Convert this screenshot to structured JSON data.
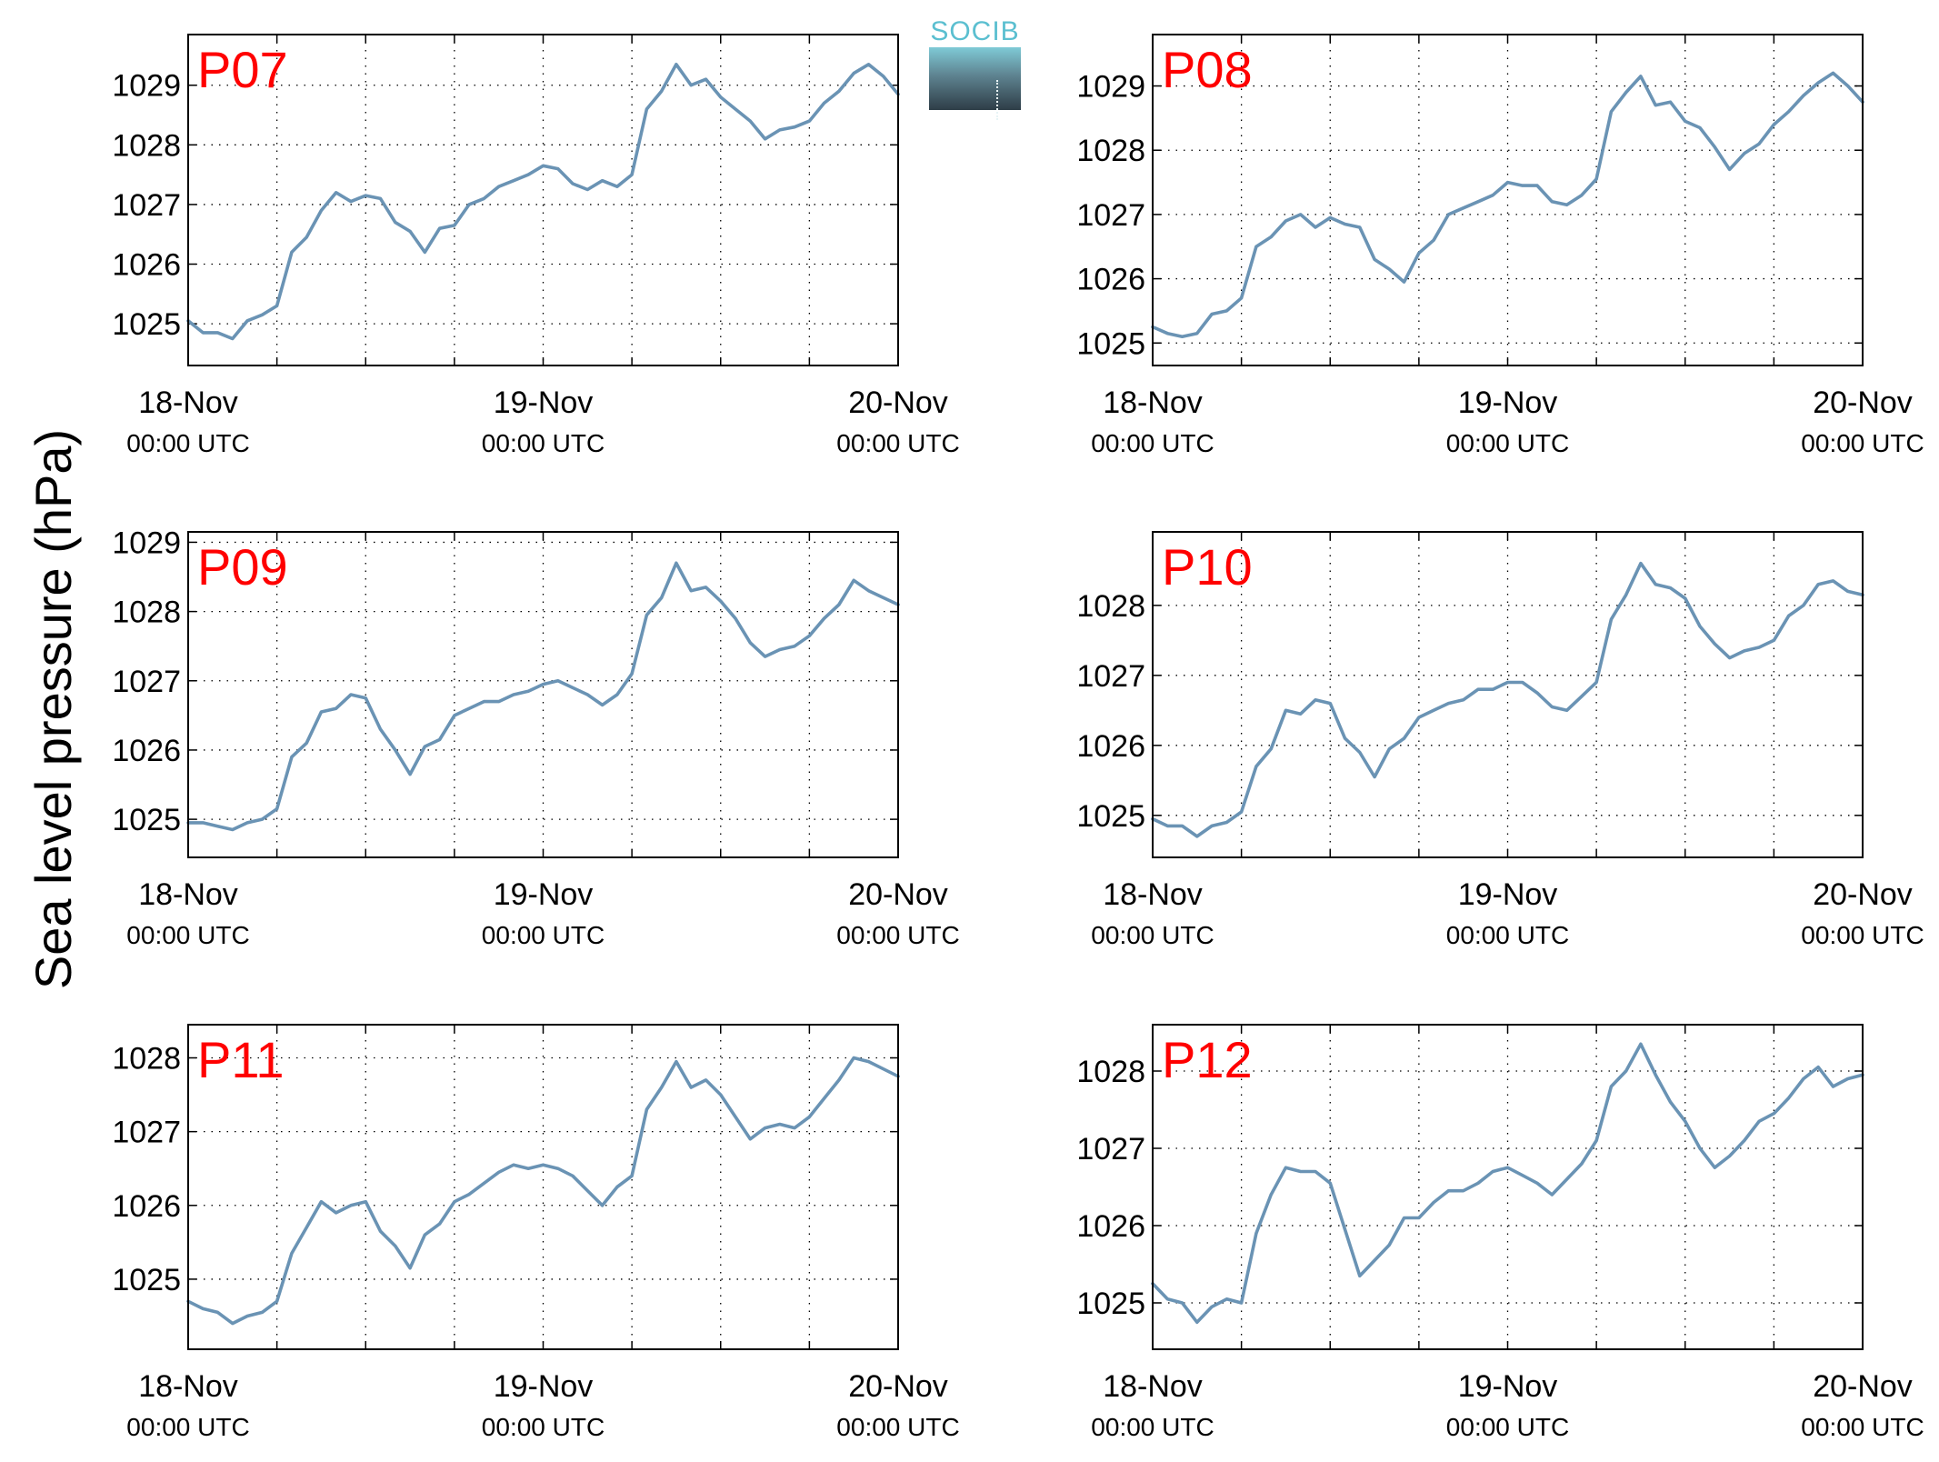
{
  "figure": {
    "ylabel": "Sea level pressure (hPa)",
    "logo_text": "SOCIB",
    "line_color": "#6a93b4",
    "label_color": "#ff0000",
    "logo_color": "#5bbfd0"
  },
  "chart_data": [
    {
      "type": "line",
      "title": "P07",
      "x_ticks": [
        "18-Nov",
        "19-Nov",
        "20-Nov"
      ],
      "x_tick_sub": "00:00 UTC",
      "xlim": [
        0,
        48
      ],
      "ylim": [
        1024.3,
        1029.85
      ],
      "y_ticks": [
        1025,
        1026,
        1027,
        1028,
        1029
      ],
      "grid": true,
      "x": [
        0,
        1,
        2,
        3,
        4,
        5,
        6,
        7,
        8,
        9,
        10,
        11,
        12,
        13,
        14,
        15,
        16,
        17,
        18,
        19,
        20,
        21,
        22,
        23,
        24,
        25,
        26,
        27,
        28,
        29,
        30,
        31,
        32,
        33,
        34,
        35,
        36,
        37,
        38,
        39,
        40,
        41,
        42,
        43,
        44,
        45,
        46,
        47,
        48
      ],
      "y": [
        1025.05,
        1024.85,
        1024.85,
        1024.75,
        1025.05,
        1025.15,
        1025.3,
        1026.2,
        1026.45,
        1026.9,
        1027.2,
        1027.05,
        1027.15,
        1027.1,
        1026.7,
        1026.55,
        1026.2,
        1026.6,
        1026.65,
        1027.0,
        1027.1,
        1027.3,
        1027.4,
        1027.5,
        1027.65,
        1027.6,
        1027.35,
        1027.25,
        1027.4,
        1027.3,
        1027.5,
        1028.6,
        1028.9,
        1029.35,
        1029.0,
        1029.1,
        1028.8,
        1028.6,
        1028.4,
        1028.1,
        1028.25,
        1028.3,
        1028.4,
        1028.7,
        1028.9,
        1029.2,
        1029.35,
        1029.15,
        1028.85
      ]
    },
    {
      "type": "line",
      "title": "P08",
      "x_ticks": [
        "18-Nov",
        "19-Nov",
        "20-Nov"
      ],
      "x_tick_sub": "00:00 UTC",
      "xlim": [
        0,
        48
      ],
      "ylim": [
        1024.65,
        1029.8
      ],
      "y_ticks": [
        1025,
        1026,
        1027,
        1028,
        1029
      ],
      "grid": true,
      "x": [
        0,
        1,
        2,
        3,
        4,
        5,
        6,
        7,
        8,
        9,
        10,
        11,
        12,
        13,
        14,
        15,
        16,
        17,
        18,
        19,
        20,
        21,
        22,
        23,
        24,
        25,
        26,
        27,
        28,
        29,
        30,
        31,
        32,
        33,
        34,
        35,
        36,
        37,
        38,
        39,
        40,
        41,
        42,
        43,
        44,
        45,
        46,
        47,
        48
      ],
      "y": [
        1025.25,
        1025.15,
        1025.1,
        1025.15,
        1025.45,
        1025.5,
        1025.7,
        1026.5,
        1026.65,
        1026.9,
        1027.0,
        1026.8,
        1026.95,
        1026.85,
        1026.8,
        1026.3,
        1026.15,
        1025.95,
        1026.4,
        1026.6,
        1027.0,
        1027.1,
        1027.2,
        1027.3,
        1027.5,
        1027.45,
        1027.45,
        1027.2,
        1027.15,
        1027.3,
        1027.55,
        1028.6,
        1028.9,
        1029.15,
        1028.7,
        1028.75,
        1028.45,
        1028.35,
        1028.05,
        1027.7,
        1027.95,
        1028.1,
        1028.4,
        1028.6,
        1028.85,
        1029.05,
        1029.2,
        1029.0,
        1028.75
      ]
    },
    {
      "type": "line",
      "title": "P09",
      "x_ticks": [
        "18-Nov",
        "19-Nov",
        "20-Nov"
      ],
      "x_tick_sub": "00:00 UTC",
      "xlim": [
        0,
        48
      ],
      "ylim": [
        1024.45,
        1029.15
      ],
      "y_ticks": [
        1025,
        1026,
        1027,
        1028,
        1029
      ],
      "grid": true,
      "x": [
        0,
        1,
        2,
        3,
        4,
        5,
        6,
        7,
        8,
        9,
        10,
        11,
        12,
        13,
        14,
        15,
        16,
        17,
        18,
        19,
        20,
        21,
        22,
        23,
        24,
        25,
        26,
        27,
        28,
        29,
        30,
        31,
        32,
        33,
        34,
        35,
        36,
        37,
        38,
        39,
        40,
        41,
        42,
        43,
        44,
        45,
        46,
        47,
        48
      ],
      "y": [
        1024.95,
        1024.95,
        1024.9,
        1024.85,
        1024.95,
        1025.0,
        1025.15,
        1025.9,
        1026.1,
        1026.55,
        1026.6,
        1026.8,
        1026.75,
        1026.3,
        1026.0,
        1025.65,
        1026.05,
        1026.15,
        1026.5,
        1026.6,
        1026.7,
        1026.7,
        1026.8,
        1026.85,
        1026.95,
        1027.0,
        1026.9,
        1026.8,
        1026.65,
        1026.8,
        1027.1,
        1027.95,
        1028.2,
        1028.7,
        1028.3,
        1028.35,
        1028.15,
        1027.9,
        1027.55,
        1027.35,
        1027.45,
        1027.5,
        1027.65,
        1027.9,
        1028.1,
        1028.45,
        1028.3,
        1028.2,
        1028.1
      ]
    },
    {
      "type": "line",
      "title": "P10",
      "x_ticks": [
        "18-Nov",
        "19-Nov",
        "20-Nov"
      ],
      "x_tick_sub": "00:00 UTC",
      "xlim": [
        0,
        48
      ],
      "ylim": [
        1024.4,
        1029.05
      ],
      "y_ticks": [
        1025,
        1026,
        1027,
        1028
      ],
      "grid": true,
      "x": [
        0,
        1,
        2,
        3,
        4,
        5,
        6,
        7,
        8,
        9,
        10,
        11,
        12,
        13,
        14,
        15,
        16,
        17,
        18,
        19,
        20,
        21,
        22,
        23,
        24,
        25,
        26,
        27,
        28,
        29,
        30,
        31,
        32,
        33,
        34,
        35,
        36,
        37,
        38,
        39,
        40,
        41,
        42,
        43,
        44,
        45,
        46,
        47,
        48
      ],
      "y": [
        1024.95,
        1024.85,
        1024.85,
        1024.7,
        1024.85,
        1024.9,
        1025.05,
        1025.7,
        1025.95,
        1026.5,
        1026.45,
        1026.65,
        1026.6,
        1026.1,
        1025.9,
        1025.55,
        1025.95,
        1026.1,
        1026.4,
        1026.5,
        1026.6,
        1026.65,
        1026.8,
        1026.8,
        1026.9,
        1026.9,
        1026.75,
        1026.55,
        1026.5,
        1026.7,
        1026.9,
        1027.8,
        1028.15,
        1028.6,
        1028.3,
        1028.25,
        1028.1,
        1027.7,
        1027.45,
        1027.25,
        1027.35,
        1027.4,
        1027.5,
        1027.85,
        1028.0,
        1028.3,
        1028.35,
        1028.2,
        1028.15
      ]
    },
    {
      "type": "line",
      "title": "P11",
      "x_ticks": [
        "18-Nov",
        "19-Nov",
        "20-Nov"
      ],
      "x_tick_sub": "00:00 UTC",
      "xlim": [
        0,
        48
      ],
      "ylim": [
        1024.05,
        1028.45
      ],
      "y_ticks": [
        1025,
        1026,
        1027,
        1028
      ],
      "grid": true,
      "x": [
        0,
        1,
        2,
        3,
        4,
        5,
        6,
        7,
        8,
        9,
        10,
        11,
        12,
        13,
        14,
        15,
        16,
        17,
        18,
        19,
        20,
        21,
        22,
        23,
        24,
        25,
        26,
        27,
        28,
        29,
        30,
        31,
        32,
        33,
        34,
        35,
        36,
        37,
        38,
        39,
        40,
        41,
        42,
        43,
        44,
        45,
        46,
        47,
        48
      ],
      "y": [
        1024.7,
        1024.6,
        1024.55,
        1024.4,
        1024.5,
        1024.55,
        1024.7,
        1025.35,
        1025.7,
        1026.05,
        1025.9,
        1026.0,
        1026.05,
        1025.65,
        1025.45,
        1025.15,
        1025.6,
        1025.75,
        1026.05,
        1026.15,
        1026.3,
        1026.45,
        1026.55,
        1026.5,
        1026.55,
        1026.5,
        1026.4,
        1026.2,
        1026.0,
        1026.25,
        1026.4,
        1027.3,
        1027.6,
        1027.95,
        1027.6,
        1027.7,
        1027.5,
        1027.2,
        1026.9,
        1027.05,
        1027.1,
        1027.05,
        1027.2,
        1027.45,
        1027.7,
        1028.0,
        1027.95,
        1027.85,
        1027.75
      ]
    },
    {
      "type": "line",
      "title": "P12",
      "x_ticks": [
        "18-Nov",
        "19-Nov",
        "20-Nov"
      ],
      "x_tick_sub": "00:00 UTC",
      "xlim": [
        0,
        48
      ],
      "ylim": [
        1024.4,
        1028.6
      ],
      "y_ticks": [
        1025,
        1026,
        1027,
        1028
      ],
      "grid": true,
      "x": [
        0,
        1,
        2,
        3,
        4,
        5,
        6,
        7,
        8,
        9,
        10,
        11,
        12,
        13,
        14,
        15,
        16,
        17,
        18,
        19,
        20,
        21,
        22,
        23,
        24,
        25,
        26,
        27,
        28,
        29,
        30,
        31,
        32,
        33,
        34,
        35,
        36,
        37,
        38,
        39,
        40,
        41,
        42,
        43,
        44,
        45,
        46,
        47,
        48
      ],
      "y": [
        1025.25,
        1025.05,
        1025.0,
        1024.75,
        1024.95,
        1025.05,
        1025.0,
        1025.9,
        1026.4,
        1026.75,
        1026.7,
        1026.7,
        1026.55,
        1025.95,
        1025.35,
        1025.55,
        1025.75,
        1026.1,
        1026.1,
        1026.3,
        1026.45,
        1026.45,
        1026.55,
        1026.7,
        1026.75,
        1026.65,
        1026.55,
        1026.4,
        1026.6,
        1026.8,
        1027.1,
        1027.8,
        1028.0,
        1028.35,
        1027.95,
        1027.6,
        1027.35,
        1027.0,
        1026.75,
        1026.9,
        1027.1,
        1027.35,
        1027.45,
        1027.65,
        1027.9,
        1028.05,
        1027.8,
        1027.9,
        1027.95
      ]
    }
  ]
}
